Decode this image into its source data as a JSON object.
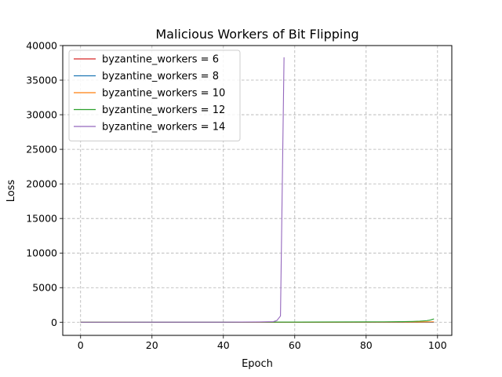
{
  "chart_data": {
    "type": "line",
    "title": "Malicious Workers of Bit Flipping",
    "xlabel": "Epoch",
    "ylabel": "Loss",
    "xlim": [
      -5,
      104
    ],
    "ylim": [
      -1900,
      40000
    ],
    "xticks": [
      0,
      20,
      40,
      60,
      80,
      100
    ],
    "yticks": [
      0,
      5000,
      10000,
      15000,
      20000,
      25000,
      30000,
      35000,
      40000
    ],
    "grid": true,
    "grid_style": "dashed",
    "legend_position": "upper-left",
    "series": [
      {
        "name": "byzantine_workers = 6",
        "color": "#d62728",
        "x": [
          0,
          10,
          20,
          30,
          40,
          50,
          60,
          70,
          80,
          90,
          99
        ],
        "y": [
          2.3,
          2.1,
          2.0,
          1.9,
          1.9,
          1.8,
          1.8,
          1.8,
          1.8,
          1.8,
          1.8
        ]
      },
      {
        "name": "byzantine_workers = 8",
        "color": "#1f77b4",
        "x": [
          0,
          10,
          20,
          30,
          40,
          50,
          60,
          70,
          80,
          90,
          99
        ],
        "y": [
          2.3,
          2.2,
          2.1,
          2.0,
          2.0,
          2.0,
          2.0,
          2.0,
          2.0,
          2.0,
          2.0
        ]
      },
      {
        "name": "byzantine_workers = 10",
        "color": "#ff7f0e",
        "x": [
          0,
          10,
          20,
          30,
          40,
          50,
          60,
          70,
          80,
          90,
          95,
          97,
          99
        ],
        "y": [
          2.3,
          2.3,
          2.5,
          3,
          4,
          6,
          9,
          14,
          20,
          30,
          40,
          50,
          60
        ]
      },
      {
        "name": "byzantine_workers = 12",
        "color": "#2ca02c",
        "x": [
          0,
          10,
          20,
          30,
          40,
          50,
          60,
          70,
          80,
          85,
          90,
          93,
          95,
          97,
          98,
          99
        ],
        "y": [
          2.3,
          3,
          5,
          8,
          12,
          18,
          25,
          35,
          50,
          60,
          80,
          110,
          150,
          220,
          320,
          480
        ]
      },
      {
        "name": "byzantine_workers = 14",
        "color": "#9467bd",
        "x": [
          0,
          10,
          20,
          30,
          40,
          50,
          54,
          55,
          56,
          57
        ],
        "y": [
          2.3,
          3,
          5,
          8,
          15,
          40,
          80,
          250,
          900,
          38300
        ]
      }
    ]
  }
}
